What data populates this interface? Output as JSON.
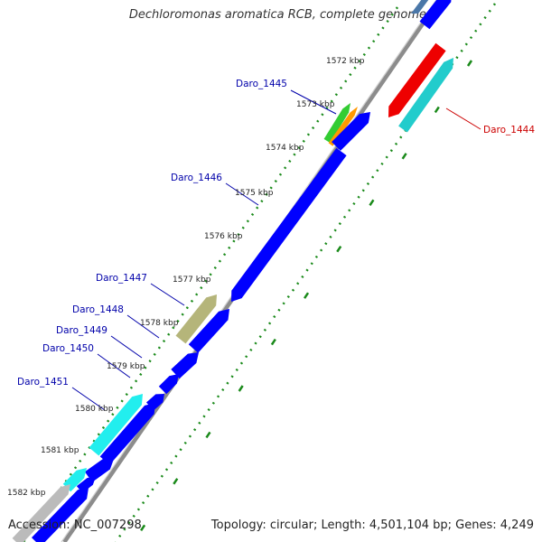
{
  "header": {
    "title": "Dechloromonas aromatica RCB, complete genome"
  },
  "footer": {
    "accession": "Accession: NC_007298",
    "summary": "Topology: circular; Length: 4,501,104 bp; Genes: 4,249"
  },
  "scale": {
    "unit": "kbp",
    "ticks": [
      "1572 kbp",
      "1573 kbp",
      "1574 kbp",
      "1575 kbp",
      "1576 kbp",
      "1577 kbp",
      "1578 kbp",
      "1579 kbp",
      "1580 kbp",
      "1581 kbp",
      "1582 kbp"
    ]
  },
  "genes": [
    {
      "id": "Daro_1444",
      "strand": "reverse",
      "color": "#ff0000"
    },
    {
      "id": "Daro_1445",
      "strand": "forward",
      "color": "#33cc33"
    },
    {
      "id": "Daro_1446",
      "strand": "forward",
      "color": "#0000ff"
    },
    {
      "id": "Daro_1447",
      "strand": "forward",
      "color": "#bdbd7a"
    },
    {
      "id": "Daro_1448",
      "strand": "forward",
      "color": "#0000ff"
    },
    {
      "id": "Daro_1449",
      "strand": "forward",
      "color": "#0000ff"
    },
    {
      "id": "Daro_1450",
      "strand": "forward",
      "color": "#0000ff"
    },
    {
      "id": "Daro_1451",
      "strand": "forward",
      "color": "#00ffff"
    }
  ],
  "colors": {
    "backbone": "#8c8c8c",
    "cds": "#0000ff",
    "rrna": "#00ffff",
    "gene_label_forward": "#0000aa",
    "gene_label_reverse": "#cc0000",
    "tick_green": "#1a8a1a",
    "tick_label": "#222222"
  }
}
